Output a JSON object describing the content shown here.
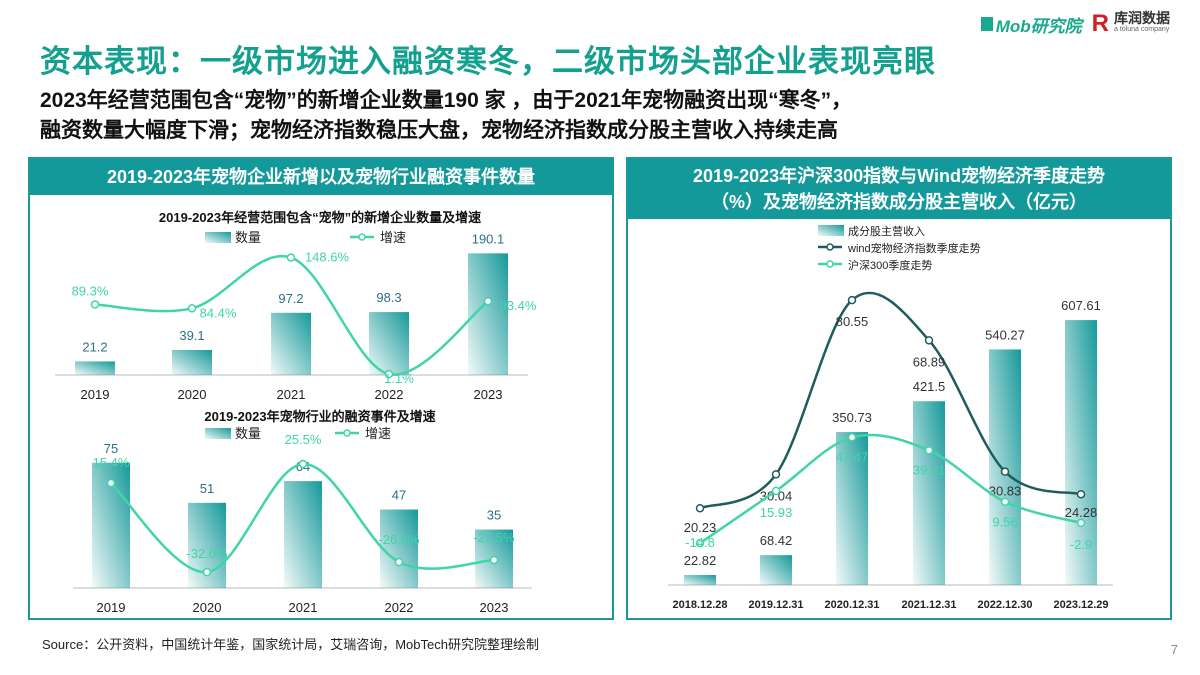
{
  "header": {
    "title": "资本表现：一级市场进入融资寒冬，二级市场头部企业表现亮眼",
    "subtitle_line1": "2023年经营范围包含“宠物”的新增企业数量190 家 ，由于2021年宠物融资出现“寒冬”，",
    "subtitle_line2": "融资数量大幅度下滑；宠物经济指数稳压大盘，宠物经济指数成分股主营收入持续走高",
    "logo_mob": "Mob研究院",
    "logo_kr": "库润数据",
    "logo_kr_sub": "a tolunа company"
  },
  "left_panel": {
    "title": "2019-2023年宠物企业新增以及宠物行业融资事件数量"
  },
  "right_panel": {
    "title_line1": "2019-2023年沪深300指数与Wind宠物经济季度走势",
    "title_line2": "（%）及宠物经济指数成分股主营收入（亿元）"
  },
  "colors": {
    "accent": "#13a08f",
    "bar": "#16999a",
    "line_light": "#3fd5a8",
    "line_dark": "#1e5c5e",
    "panel_border": "#1a9a99"
  },
  "chart_data": [
    {
      "type": "bar+line",
      "title": "2019-2023年经营范围包含“宠物”的新增企业数量及增速",
      "categories": [
        "2019",
        "2020",
        "2021",
        "2022",
        "2023"
      ],
      "series": [
        {
          "name": "数量",
          "type": "bar",
          "values": [
            21.2,
            39.1,
            97.2,
            98.3,
            190.1
          ],
          "labels": [
            "21.2",
            "39.1",
            "97.2",
            "98.3",
            "190.1"
          ]
        },
        {
          "name": "增速",
          "type": "line",
          "values": [
            89.3,
            84.4,
            148.6,
            1.1,
            93.4
          ],
          "labels": [
            "89.3%",
            "84.4%",
            "148.6%",
            "1.1%",
            "93.4%"
          ]
        }
      ],
      "legend": "top-center",
      "grid": false
    },
    {
      "type": "bar+line",
      "title": "2019-2023年宠物行业的融资事件及增速",
      "categories": [
        "2019",
        "2020",
        "2021",
        "2022",
        "2023"
      ],
      "series": [
        {
          "name": "数量",
          "type": "bar",
          "values": [
            75,
            51,
            64,
            47,
            35
          ],
          "labels": [
            "75",
            "51",
            "64",
            "47",
            "35"
          ]
        },
        {
          "name": "增速",
          "type": "line",
          "values": [
            15.4,
            -32.0,
            25.5,
            -26.6,
            -25.5
          ],
          "labels": [
            "15.4%",
            "-32.0%",
            "25.5%",
            "-26.6%",
            "-25.5%"
          ]
        }
      ],
      "legend": "top-center",
      "grid": false
    },
    {
      "type": "bar+line",
      "title": "",
      "categories": [
        "2018.12.28",
        "2019.12.31",
        "2020.12.31",
        "2021.12.31",
        "2022.12.30",
        "2023.12.29"
      ],
      "series": [
        {
          "name": "成分股主营收入",
          "type": "bar",
          "values": [
            22.82,
            68.42,
            350.73,
            421.5,
            540.27,
            607.61
          ],
          "labels": [
            "22.82",
            "68.42",
            "350.73",
            "421.5",
            "540.27",
            "607.61"
          ]
        },
        {
          "name": "wind宠物经济指数季度走势",
          "type": "line",
          "values": [
            20.23,
            30.04,
            80.55,
            68.89,
            30.83,
            24.28
          ],
          "labels": [
            "20.23",
            "30.04",
            "80.55",
            "68.89",
            "30.83",
            "24.28"
          ]
        },
        {
          "name": "沪深300季度走势",
          "type": "line",
          "values": [
            -14.8,
            15.93,
            47.47,
            39.81,
            9.56,
            -2.9
          ],
          "labels": [
            "-14.8",
            "15.93",
            "47.47",
            "39.81",
            "9.56",
            "-2.9"
          ]
        }
      ],
      "legend": "top-left",
      "grid": false
    }
  ],
  "footer": {
    "source": "Source：公开资料，中国统计年鉴，国家统计局，艾瑞咨询，MobTech研究院整理绘制",
    "page": "7"
  }
}
